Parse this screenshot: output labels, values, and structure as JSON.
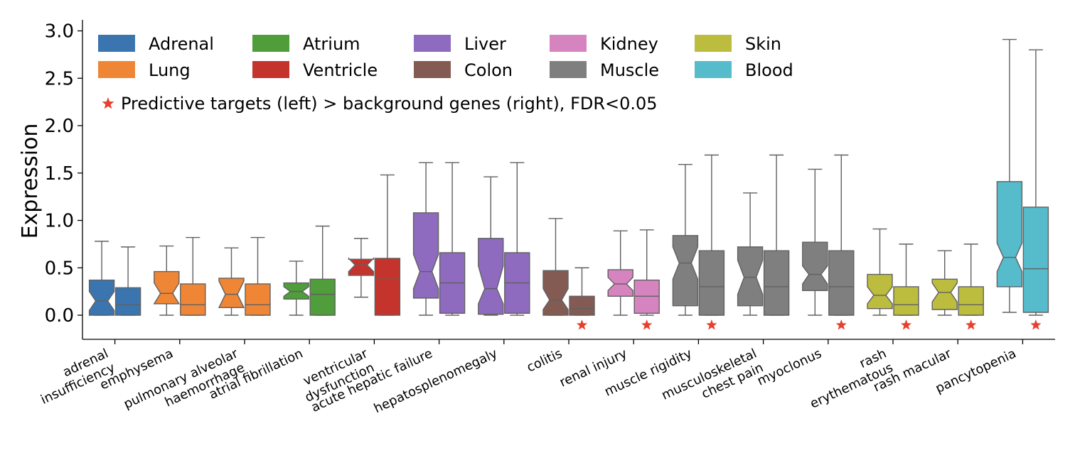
{
  "chart_data": {
    "type": "boxplot",
    "ylabel": "Expression",
    "xlabel": "",
    "ylim": [
      -0.25,
      3.05
    ],
    "yticks": [
      "0.0",
      "0.5",
      "1.0",
      "1.5",
      "2.0",
      "2.5",
      "3.0"
    ],
    "ytick_values": [
      0.0,
      0.5,
      1.0,
      1.5,
      2.0,
      2.5,
      3.0
    ],
    "grid": false,
    "legend_position": "top-left",
    "legend": [
      {
        "label": "Adrenal",
        "color": "#3a75b0"
      },
      {
        "label": "Lung",
        "color": "#ef8636"
      },
      {
        "label": "Atrium",
        "color": "#4f9d3b"
      },
      {
        "label": "Ventricle",
        "color": "#c4342d"
      },
      {
        "label": "Liver",
        "color": "#8e6bbf"
      },
      {
        "label": "Colon",
        "color": "#845b53"
      },
      {
        "label": "Kidney",
        "color": "#d684c0"
      },
      {
        "label": "Muscle",
        "color": "#7f7f7f"
      },
      {
        "label": "Skin",
        "color": "#bcbd3f"
      },
      {
        "label": "Blood",
        "color": "#56bccc"
      }
    ],
    "star_note": "Predictive targets (left) > background genes (right), FDR<0.05",
    "star_color": "#e8402f",
    "series_order": [
      "Predictive targets",
      "Background genes"
    ],
    "categories": [
      {
        "label": [
          "adrenal",
          "insufficiency"
        ],
        "color": "#3a75b0",
        "star": false,
        "left": {
          "wlo": 0.0,
          "q1": 0.0,
          "med": 0.15,
          "q3": 0.37,
          "whi": 0.78,
          "nlo": 0.05,
          "nhi": 0.25
        },
        "right": {
          "wlo": 0.0,
          "q1": 0.0,
          "med": 0.11,
          "q3": 0.29,
          "whi": 0.72,
          "nlo": 0.11,
          "nhi": 0.11
        }
      },
      {
        "label": [
          "emphysema"
        ],
        "color": "#ef8636",
        "star": false,
        "left": {
          "wlo": 0.0,
          "q1": 0.12,
          "med": 0.23,
          "q3": 0.46,
          "whi": 0.73,
          "nlo": 0.12,
          "nhi": 0.34
        },
        "right": {
          "wlo": 0.0,
          "q1": 0.0,
          "med": 0.11,
          "q3": 0.33,
          "whi": 0.82,
          "nlo": 0.11,
          "nhi": 0.11
        }
      },
      {
        "label": [
          "pulmonary alveolar",
          "haemorrhage"
        ],
        "color": "#ef8636",
        "star": false,
        "left": {
          "wlo": 0.0,
          "q1": 0.08,
          "med": 0.22,
          "q3": 0.39,
          "whi": 0.71,
          "nlo": 0.08,
          "nhi": 0.36
        },
        "right": {
          "wlo": 0.0,
          "q1": 0.0,
          "med": 0.11,
          "q3": 0.33,
          "whi": 0.82,
          "nlo": 0.11,
          "nhi": 0.11
        }
      },
      {
        "label": [
          "atrial fibrillation"
        ],
        "color": "#4f9d3b",
        "star": false,
        "left": {
          "wlo": 0.0,
          "q1": 0.17,
          "med": 0.25,
          "q3": 0.34,
          "whi": 0.57,
          "nlo": 0.2,
          "nhi": 0.3
        },
        "right": {
          "wlo": 0.0,
          "q1": 0.0,
          "med": 0.22,
          "q3": 0.38,
          "whi": 0.94,
          "nlo": 0.22,
          "nhi": 0.22
        }
      },
      {
        "label": [
          "ventricular",
          "dysfunction"
        ],
        "color": "#c4342d",
        "star": false,
        "left": {
          "wlo": 0.19,
          "q1": 0.42,
          "med": 0.53,
          "q3": 0.59,
          "whi": 0.81,
          "nlo": 0.46,
          "nhi": 0.6
        },
        "right": {
          "wlo": 0.0,
          "q1": 0.0,
          "med": 0.38,
          "q3": 0.6,
          "whi": 1.48,
          "nlo": 0.38,
          "nhi": 0.38
        }
      },
      {
        "label": [
          "acute hepatic failure"
        ],
        "color": "#8e6bbf",
        "star": false,
        "left": {
          "wlo": 0.0,
          "q1": 0.18,
          "med": 0.46,
          "q3": 1.08,
          "whi": 1.61,
          "nlo": 0.28,
          "nhi": 0.64
        },
        "right": {
          "wlo": 0.0,
          "q1": 0.02,
          "med": 0.34,
          "q3": 0.66,
          "whi": 1.61,
          "nlo": 0.34,
          "nhi": 0.34
        }
      },
      {
        "label": [
          "hepatosplenomegaly"
        ],
        "color": "#8e6bbf",
        "star": false,
        "left": {
          "wlo": 0.0,
          "q1": 0.01,
          "med": 0.28,
          "q3": 0.81,
          "whi": 1.46,
          "nlo": 0.12,
          "nhi": 0.52
        },
        "right": {
          "wlo": 0.0,
          "q1": 0.02,
          "med": 0.34,
          "q3": 0.66,
          "whi": 1.61,
          "nlo": 0.34,
          "nhi": 0.34
        }
      },
      {
        "label": [
          "colitis"
        ],
        "color": "#845b53",
        "star": true,
        "left": {
          "wlo": 0.0,
          "q1": 0.0,
          "med": 0.16,
          "q3": 0.47,
          "whi": 1.02,
          "nlo": 0.06,
          "nhi": 0.28
        },
        "right": {
          "wlo": 0.0,
          "q1": 0.0,
          "med": 0.07,
          "q3": 0.2,
          "whi": 0.5,
          "nlo": 0.07,
          "nhi": 0.07
        }
      },
      {
        "label": [
          "renal injury"
        ],
        "color": "#d684c0",
        "star": true,
        "left": {
          "wlo": 0.0,
          "q1": 0.2,
          "med": 0.33,
          "q3": 0.48,
          "whi": 0.89,
          "nlo": 0.26,
          "nhi": 0.4
        },
        "right": {
          "wlo": 0.0,
          "q1": 0.02,
          "med": 0.2,
          "q3": 0.37,
          "whi": 0.9,
          "nlo": 0.2,
          "nhi": 0.2
        }
      },
      {
        "label": [
          "muscle rigidity"
        ],
        "color": "#7f7f7f",
        "star": true,
        "left": {
          "wlo": 0.0,
          "q1": 0.1,
          "med": 0.55,
          "q3": 0.84,
          "whi": 1.59,
          "nlo": 0.38,
          "nhi": 0.72
        },
        "right": {
          "wlo": 0.0,
          "q1": 0.0,
          "med": 0.3,
          "q3": 0.68,
          "whi": 1.69,
          "nlo": 0.3,
          "nhi": 0.3
        }
      },
      {
        "label": [
          "musculoskeletal",
          "chest pain"
        ],
        "color": "#7f7f7f",
        "star": false,
        "left": {
          "wlo": 0.0,
          "q1": 0.1,
          "med": 0.4,
          "q3": 0.72,
          "whi": 1.29,
          "nlo": 0.22,
          "nhi": 0.58
        },
        "right": {
          "wlo": 0.0,
          "q1": 0.0,
          "med": 0.3,
          "q3": 0.68,
          "whi": 1.69,
          "nlo": 0.3,
          "nhi": 0.3
        }
      },
      {
        "label": [
          "myoclonus"
        ],
        "color": "#7f7f7f",
        "star": true,
        "left": {
          "wlo": 0.0,
          "q1": 0.26,
          "med": 0.43,
          "q3": 0.77,
          "whi": 1.54,
          "nlo": 0.33,
          "nhi": 0.52
        },
        "right": {
          "wlo": 0.0,
          "q1": 0.0,
          "med": 0.3,
          "q3": 0.68,
          "whi": 1.69,
          "nlo": 0.3,
          "nhi": 0.3
        }
      },
      {
        "label": [
          "rash",
          "erythematous"
        ],
        "color": "#bcbd3f",
        "star": true,
        "left": {
          "wlo": 0.0,
          "q1": 0.07,
          "med": 0.21,
          "q3": 0.43,
          "whi": 0.91,
          "nlo": 0.12,
          "nhi": 0.3
        },
        "right": {
          "wlo": 0.0,
          "q1": 0.0,
          "med": 0.11,
          "q3": 0.3,
          "whi": 0.75,
          "nlo": 0.11,
          "nhi": 0.11
        }
      },
      {
        "label": [
          "rash macular"
        ],
        "color": "#bcbd3f",
        "star": true,
        "left": {
          "wlo": 0.0,
          "q1": 0.06,
          "med": 0.24,
          "q3": 0.38,
          "whi": 0.68,
          "nlo": 0.14,
          "nhi": 0.34
        },
        "right": {
          "wlo": 0.0,
          "q1": 0.0,
          "med": 0.11,
          "q3": 0.3,
          "whi": 0.75,
          "nlo": 0.11,
          "nhi": 0.11
        }
      },
      {
        "label": [
          "pancytopenia"
        ],
        "color": "#56bccc",
        "star": true,
        "left": {
          "wlo": 0.03,
          "q1": 0.3,
          "med": 0.61,
          "q3": 1.41,
          "whi": 2.91,
          "nlo": 0.46,
          "nhi": 0.76
        },
        "right": {
          "wlo": 0.0,
          "q1": 0.03,
          "med": 0.49,
          "q3": 1.14,
          "whi": 2.8,
          "nlo": 0.49,
          "nhi": 0.49
        }
      }
    ]
  }
}
